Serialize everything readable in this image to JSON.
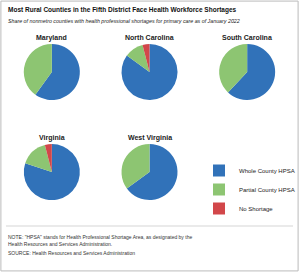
{
  "chart_data": {
    "type": "pie",
    "title": "Most Rural Counties in the Fifth District Face Health Workforce Shortages",
    "subtitle": "Share of nonmetro counties with health professional shortages for primary care as of January 2022",
    "categories": [
      "Whole County HPSA",
      "Partial County HPSA",
      "No Shortage"
    ],
    "colors": [
      "#3172b9",
      "#8dc572",
      "#d2474a"
    ],
    "series": [
      {
        "name": "Maryland",
        "values": [
          60,
          40,
          0
        ]
      },
      {
        "name": "North Carolina",
        "values": [
          85,
          11,
          4
        ]
      },
      {
        "name": "South Carolina",
        "values": [
          62,
          38,
          0
        ]
      },
      {
        "name": "Virginia",
        "values": [
          80,
          16,
          4
        ]
      },
      {
        "name": "West Virginia",
        "values": [
          65,
          35,
          0
        ]
      }
    ],
    "legend": "right",
    "annotations": [
      "NOTE: \"HPSA\" stands for Health Professional Shortage Area, as designated by the Health Resources and Services Administration.",
      "SOURCE: Health Resources and Services Administration"
    ]
  }
}
